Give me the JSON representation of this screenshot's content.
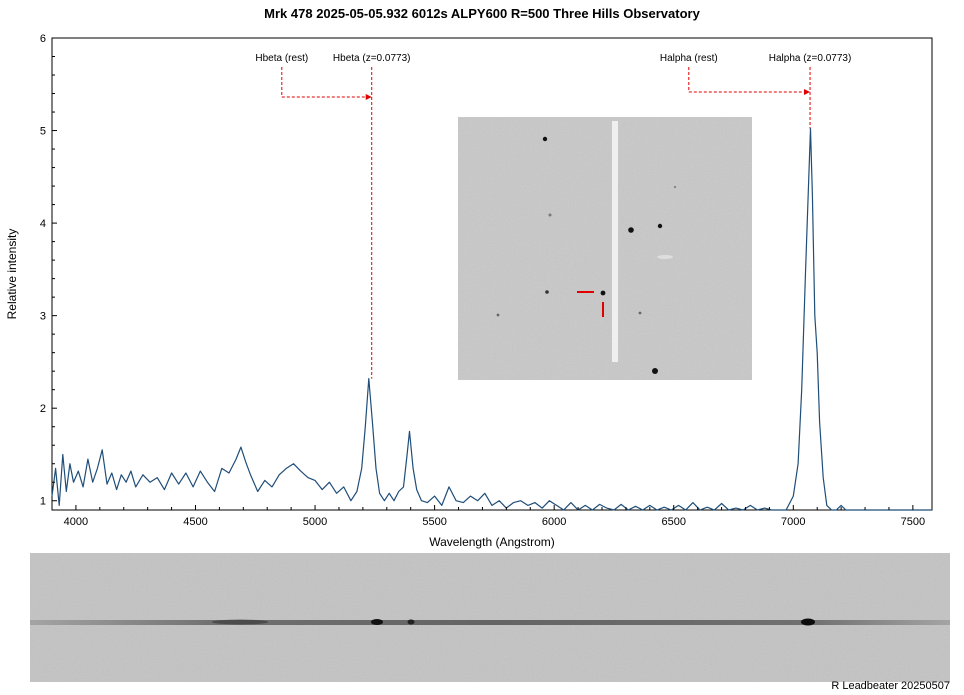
{
  "chart_data": {
    "type": "line",
    "title": "Mrk 478   2025-05-05.932   6012s  ALPY600 R=500 Three Hills Observatory",
    "xlabel": "Wavelength (Angstrom)",
    "ylabel": "Relative intensity",
    "xlim": [
      3900,
      7580
    ],
    "ylim": [
      0.9,
      6
    ],
    "xticks": [
      4000,
      4500,
      5000,
      5500,
      6000,
      6500,
      7000,
      7500
    ],
    "yticks": [
      1,
      2,
      3,
      4,
      5,
      6
    ],
    "grid": false,
    "line_color": "#1f4e79",
    "series": [
      {
        "points": [
          [
            3900,
            1.05
          ],
          [
            3915,
            1.35
          ],
          [
            3930,
            0.95
          ],
          [
            3945,
            1.5
          ],
          [
            3960,
            1.1
          ],
          [
            3975,
            1.4
          ],
          [
            3990,
            1.2
          ],
          [
            4010,
            1.32
          ],
          [
            4030,
            1.15
          ],
          [
            4050,
            1.45
          ],
          [
            4070,
            1.2
          ],
          [
            4090,
            1.35
          ],
          [
            4110,
            1.55
          ],
          [
            4130,
            1.18
          ],
          [
            4150,
            1.3
          ],
          [
            4170,
            1.12
          ],
          [
            4190,
            1.28
          ],
          [
            4210,
            1.2
          ],
          [
            4230,
            1.32
          ],
          [
            4250,
            1.15
          ],
          [
            4280,
            1.28
          ],
          [
            4310,
            1.2
          ],
          [
            4340,
            1.25
          ],
          [
            4370,
            1.12
          ],
          [
            4400,
            1.3
          ],
          [
            4430,
            1.18
          ],
          [
            4460,
            1.3
          ],
          [
            4490,
            1.15
          ],
          [
            4520,
            1.32
          ],
          [
            4550,
            1.2
          ],
          [
            4580,
            1.1
          ],
          [
            4610,
            1.35
          ],
          [
            4640,
            1.3
          ],
          [
            4670,
            1.45
          ],
          [
            4690,
            1.58
          ],
          [
            4710,
            1.42
          ],
          [
            4730,
            1.28
          ],
          [
            4760,
            1.1
          ],
          [
            4790,
            1.22
          ],
          [
            4820,
            1.15
          ],
          [
            4850,
            1.28
          ],
          [
            4880,
            1.35
          ],
          [
            4910,
            1.4
          ],
          [
            4940,
            1.32
          ],
          [
            4970,
            1.25
          ],
          [
            5000,
            1.22
          ],
          [
            5030,
            1.12
          ],
          [
            5060,
            1.2
          ],
          [
            5090,
            1.08
          ],
          [
            5120,
            1.15
          ],
          [
            5150,
            1.0
          ],
          [
            5175,
            1.1
          ],
          [
            5195,
            1.35
          ],
          [
            5210,
            1.8
          ],
          [
            5225,
            2.32
          ],
          [
            5240,
            1.85
          ],
          [
            5255,
            1.35
          ],
          [
            5270,
            1.08
          ],
          [
            5290,
            1.0
          ],
          [
            5310,
            1.08
          ],
          [
            5330,
            1.0
          ],
          [
            5350,
            1.1
          ],
          [
            5370,
            1.15
          ],
          [
            5385,
            1.5
          ],
          [
            5395,
            1.75
          ],
          [
            5410,
            1.35
          ],
          [
            5425,
            1.12
          ],
          [
            5445,
            1.0
          ],
          [
            5470,
            0.98
          ],
          [
            5500,
            1.05
          ],
          [
            5530,
            0.95
          ],
          [
            5560,
            1.15
          ],
          [
            5590,
            1.0
          ],
          [
            5620,
            0.98
          ],
          [
            5650,
            1.05
          ],
          [
            5680,
            1.0
          ],
          [
            5710,
            1.08
          ],
          [
            5740,
            0.95
          ],
          [
            5770,
            1.0
          ],
          [
            5800,
            0.92
          ],
          [
            5830,
            0.98
          ],
          [
            5860,
            1.0
          ],
          [
            5890,
            0.95
          ],
          [
            5920,
            0.98
          ],
          [
            5950,
            0.92
          ],
          [
            5980,
            1.0
          ],
          [
            6010,
            0.95
          ],
          [
            6040,
            0.88
          ],
          [
            6070,
            0.98
          ],
          [
            6100,
            0.9
          ],
          [
            6130,
            0.95
          ],
          [
            6160,
            0.88
          ],
          [
            6190,
            0.96
          ],
          [
            6220,
            0.92
          ],
          [
            6250,
            0.9
          ],
          [
            6280,
            0.96
          ],
          [
            6310,
            0.88
          ],
          [
            6340,
            0.94
          ],
          [
            6370,
            0.88
          ],
          [
            6400,
            0.95
          ],
          [
            6430,
            0.9
          ],
          [
            6460,
            0.93
          ],
          [
            6490,
            0.88
          ],
          [
            6520,
            0.95
          ],
          [
            6550,
            0.9
          ],
          [
            6580,
            0.98
          ],
          [
            6610,
            0.87
          ],
          [
            6640,
            0.93
          ],
          [
            6670,
            0.88
          ],
          [
            6700,
            0.97
          ],
          [
            6730,
            0.86
          ],
          [
            6760,
            0.92
          ],
          [
            6790,
            0.86
          ],
          [
            6820,
            0.95
          ],
          [
            6850,
            0.88
          ],
          [
            6880,
            0.92
          ],
          [
            6910,
            0.86
          ],
          [
            6940,
            0.9
          ],
          [
            6970,
            0.87
          ],
          [
            7000,
            1.05
          ],
          [
            7020,
            1.4
          ],
          [
            7035,
            2.2
          ],
          [
            7050,
            3.4
          ],
          [
            7065,
            4.5
          ],
          [
            7072,
            5.02
          ],
          [
            7080,
            4.3
          ],
          [
            7090,
            3.0
          ],
          [
            7100,
            2.6
          ],
          [
            7110,
            1.85
          ],
          [
            7125,
            1.25
          ],
          [
            7140,
            0.95
          ],
          [
            7160,
            0.88
          ],
          [
            7180,
            0.82
          ],
          [
            7200,
            0.95
          ],
          [
            7220,
            0.7
          ],
          [
            7240,
            0.85
          ],
          [
            7260,
            0.68
          ],
          [
            7280,
            0.5
          ],
          [
            7300,
            0.35
          ],
          [
            7320,
            0.6
          ],
          [
            7340,
            0.8
          ],
          [
            7360,
            0.7
          ],
          [
            7380,
            0.88
          ],
          [
            7400,
            0.6
          ],
          [
            7420,
            0.75
          ],
          [
            7440,
            0.55
          ],
          [
            7460,
            0.8
          ],
          [
            7480,
            0.65
          ],
          [
            7500,
            0.85
          ],
          [
            7520,
            0.6
          ],
          [
            7540,
            0.45
          ],
          [
            7560,
            0.7
          ],
          [
            7580,
            0.35
          ]
        ]
      }
    ],
    "annotations": [
      {
        "label": "Hbeta (rest)",
        "x": 4861
      },
      {
        "label": "Hbeta (z=0.0773)",
        "x": 5237
      },
      {
        "label": "Halpha (rest)",
        "x": 6563
      },
      {
        "label": "Halpha (z=0.0773)",
        "x": 7070
      }
    ],
    "annotation_color": "#e00000"
  },
  "credit": "R Leadbeater 20250507"
}
